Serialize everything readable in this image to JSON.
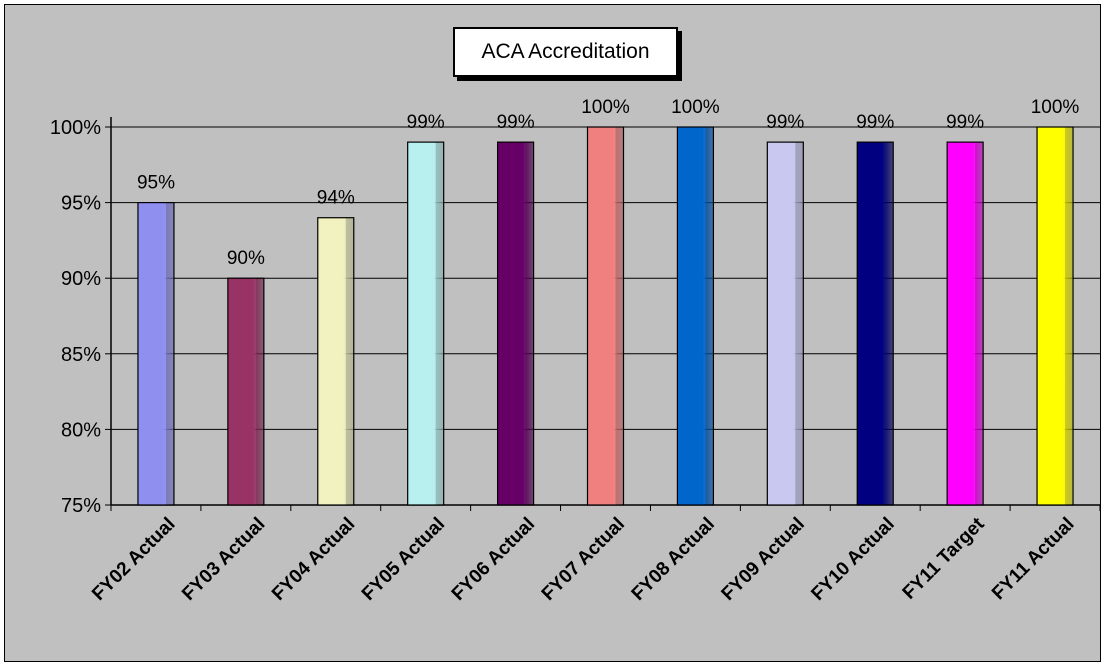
{
  "chart_data": {
    "type": "bar",
    "title": "ACA Accreditation",
    "xlabel": "",
    "ylabel": "",
    "ylim": [
      75,
      100
    ],
    "yticks": [
      "75%",
      "80%",
      "85%",
      "90%",
      "95%",
      "100%"
    ],
    "grid": true,
    "legend": "none",
    "categories": [
      "FY02 Actual",
      "FY03 Actual",
      "FY04 Actual",
      "FY05 Actual",
      "FY06 Actual",
      "FY07 Actual",
      "FY08 Actual",
      "FY09 Actual",
      "FY10 Actual",
      "FY11 Target",
      "FY11 Actual"
    ],
    "values": [
      95,
      90,
      94,
      99,
      99,
      100,
      100,
      99,
      99,
      99,
      100
    ],
    "data_labels": [
      "95%",
      "90%",
      "94%",
      "99%",
      "99%",
      "100%",
      "100%",
      "99%",
      "99%",
      "99%",
      "100%"
    ],
    "colors": [
      "#8f8ff0",
      "#993366",
      "#f2f2c0",
      "#b8f0f0",
      "#660066",
      "#f08080",
      "#0066cc",
      "#c8c8f0",
      "#000080",
      "#ff00ff",
      "#ffff00"
    ],
    "background": "#c0c0c0"
  }
}
